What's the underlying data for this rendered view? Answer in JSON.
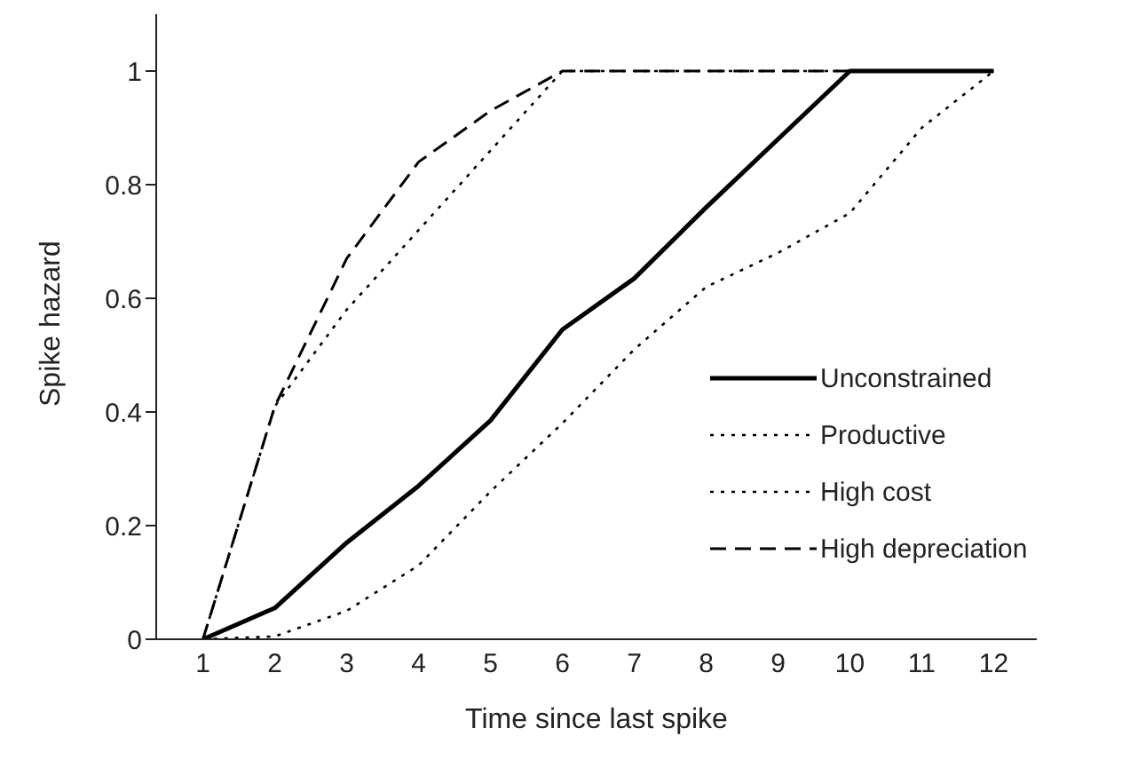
{
  "chart_data": {
    "type": "line",
    "xlabel": "Time since last spike",
    "ylabel": "Spike hazard",
    "x": [
      1,
      2,
      3,
      4,
      5,
      6,
      7,
      8,
      9,
      10,
      11,
      12
    ],
    "xlim": [
      0.35,
      12.6
    ],
    "xticks": [
      1,
      2,
      3,
      4,
      5,
      6,
      7,
      8,
      9,
      10,
      11,
      12
    ],
    "ylim": [
      0,
      1.1
    ],
    "yticks": [
      0,
      0.2,
      0.4,
      0.6,
      0.8,
      1
    ],
    "grid": false,
    "legend": "right",
    "marker": "none",
    "series": [
      {
        "name": "Unconstrained",
        "color": "#000000",
        "line_style": "solid",
        "values": [
          0,
          0.055,
          0.17,
          0.27,
          0.385,
          0.545,
          0.635,
          0.76,
          0.88,
          1,
          1,
          1
        ]
      },
      {
        "name": "Productive",
        "color": "#000000",
        "line_style": "dotted",
        "values": [
          0,
          0.41,
          0.58,
          0.72,
          0.86,
          1,
          1,
          1,
          1,
          1,
          1,
          1
        ]
      },
      {
        "name": "High cost",
        "color": "#000000",
        "line_style": "dotted",
        "values": [
          0,
          0.005,
          0.05,
          0.13,
          0.26,
          0.38,
          0.51,
          0.62,
          0.68,
          0.75,
          0.9,
          1
        ]
      },
      {
        "name": "High depreciation",
        "color": "#000000",
        "line_style": "dashed",
        "values": [
          0,
          0.41,
          0.67,
          0.84,
          0.93,
          1,
          1,
          1,
          1,
          1,
          1,
          1
        ]
      }
    ]
  }
}
